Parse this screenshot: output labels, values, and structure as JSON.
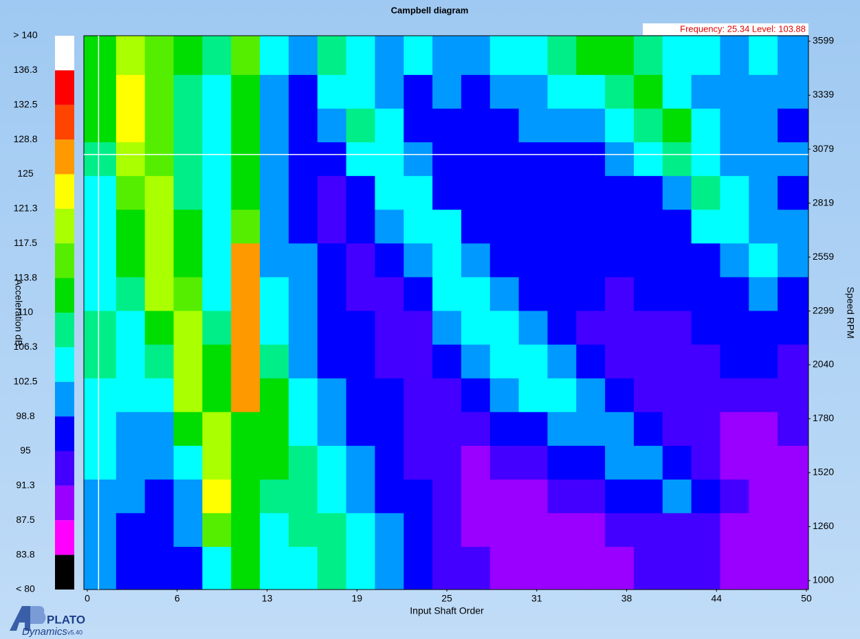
{
  "chart_data": {
    "type": "heatmap",
    "title": "Campbell diagram",
    "x_label": "Input Shaft Order",
    "y_label": "Speed RPM",
    "colorbar_label": "Acceleration dB",
    "cursor_readout": "Frequency: 25.34  Level: 103.88",
    "cursor_order": 0.4,
    "cursor_rpm": 3053,
    "xlim": [
      0,
      50
    ],
    "xticks": [
      0,
      {
        "value": 6.25,
        "label": "6"
      },
      {
        "value": 12.5,
        "label": "13"
      },
      {
        "value": 18.75,
        "label": "19"
      },
      25,
      {
        "value": 31.25,
        "label": "31"
      },
      {
        "value": 37.5,
        "label": "38"
      },
      {
        "value": 43.75,
        "label": "44"
      },
      50
    ],
    "ylim": [
      1000,
      3599
    ],
    "yticks": [
      1000,
      1260,
      1520,
      1780,
      2040,
      2299,
      2559,
      2819,
      3079,
      3339,
      3599
    ],
    "x": [
      1,
      3,
      5,
      7,
      9,
      11,
      13,
      15,
      17,
      19,
      21,
      23,
      25,
      27,
      29,
      31,
      33,
      35,
      37,
      39,
      41,
      43,
      45,
      47,
      49
    ],
    "y": [
      3518,
      3355,
      3193,
      3031,
      2868,
      2706,
      2543,
      2381,
      2218,
      2056,
      1893,
      1731,
      1568,
      1406,
      1244,
      1081
    ],
    "values": [
      [
        110,
        121,
        116,
        110,
        108,
        115,
        104,
        100,
        108,
        104,
        100,
        104,
        102,
        100,
        104,
        106,
        108,
        110,
        112,
        108,
        104,
        104,
        102,
        104,
        102
      ],
      [
        110,
        124,
        114,
        108,
        106,
        113,
        100,
        97,
        104,
        106,
        100,
        97,
        100,
        98,
        100,
        102,
        104,
        106,
        108,
        110,
        106,
        102,
        100,
        102,
        100
      ],
      [
        110,
        123,
        114,
        108,
        106,
        112,
        100,
        96,
        100,
        108,
        104,
        97,
        96,
        97,
        97,
        100,
        100,
        102,
        104,
        108,
        110,
        104,
        100,
        100,
        98
      ],
      [
        108,
        120,
        116,
        108,
        104,
        112,
        102,
        96,
        96,
        104,
        106,
        100,
        96,
        96,
        96,
        97,
        97,
        98,
        100,
        104,
        108,
        106,
        102,
        100,
        100
      ],
      [
        106,
        116,
        118,
        108,
        104,
        112,
        100,
        97,
        94,
        97,
        106,
        106,
        98,
        96,
        96,
        96,
        96,
        96,
        97,
        98,
        102,
        108,
        104,
        100,
        98
      ],
      [
        106,
        112,
        120,
        110,
        104,
        114,
        100,
        98,
        94,
        95,
        100,
        106,
        104,
        97,
        96,
        96,
        95,
        96,
        96,
        97,
        98,
        104,
        106,
        102,
        100
      ],
      [
        106,
        110,
        121,
        112,
        104,
        126,
        102,
        100,
        95,
        94,
        96,
        102,
        106,
        102,
        97,
        96,
        96,
        95,
        96,
        96,
        96,
        98,
        102,
        104,
        100
      ],
      [
        106,
        108,
        118,
        116,
        106,
        126,
        104,
        100,
        97,
        93,
        94,
        97,
        104,
        106,
        100,
        97,
        95,
        95,
        94,
        95,
        96,
        96,
        98,
        100,
        97
      ],
      [
        108,
        106,
        112,
        120,
        108,
        126,
        106,
        100,
        98,
        95,
        93,
        94,
        100,
        104,
        104,
        100,
        96,
        94,
        93,
        93,
        94,
        95,
        96,
        96,
        96
      ],
      [
        108,
        104,
        108,
        121,
        110,
        126,
        108,
        102,
        98,
        96,
        94,
        93,
        95,
        100,
        104,
        104,
        100,
        96,
        93,
        92,
        93,
        94,
        95,
        95,
        94
      ],
      [
        106,
        104,
        104,
        118,
        112,
        126,
        110,
        104,
        100,
        97,
        95,
        93,
        93,
        96,
        100,
        104,
        103,
        100,
        97,
        93,
        92,
        92,
        93,
        93,
        92
      ],
      [
        104,
        102,
        100,
        112,
        118,
        112,
        110,
        106,
        102,
        98,
        96,
        93,
        92,
        93,
        96,
        98,
        102,
        102,
        100,
        97,
        93,
        92,
        91,
        91,
        92
      ],
      [
        104,
        100,
        100,
        106,
        120,
        110,
        110,
        108,
        104,
        100,
        97,
        94,
        92,
        91,
        92,
        93,
        96,
        98,
        100,
        100,
        97,
        93,
        91,
        90,
        90
      ],
      [
        102,
        100,
        98,
        102,
        122,
        110,
        108,
        108,
        106,
        102,
        98,
        95,
        92,
        91,
        90,
        91,
        92,
        93,
        96,
        98,
        99,
        96,
        92,
        90,
        91
      ],
      [
        102,
        98,
        97,
        100,
        114,
        112,
        106,
        108,
        108,
        104,
        100,
        96,
        93,
        91,
        90,
        90,
        90,
        91,
        92,
        93,
        94,
        93,
        91,
        89,
        90
      ],
      [
        102,
        97,
        96,
        98,
        106,
        112,
        104,
        106,
        108,
        106,
        102,
        97,
        94,
        92,
        91,
        90,
        90,
        90,
        91,
        92,
        92,
        92,
        91,
        89,
        90
      ]
    ],
    "colorbar": {
      "levels": [
        {
          "value": 140,
          "label": "> 140"
        },
        136.3,
        132.5,
        128.8,
        125,
        121.3,
        117.5,
        113.8,
        110,
        106.3,
        102.5,
        98.8,
        95,
        91.3,
        87.5,
        83.8,
        {
          "value": 80,
          "label": "< 80"
        }
      ],
      "colors": [
        "#ffffff",
        "#ff0000",
        "#ff4400",
        "#ff9900",
        "#ffff00",
        "#aaff00",
        "#55ee00",
        "#00dd00",
        "#00ee88",
        "#00ffff",
        "#0099ff",
        "#0000ff",
        "#4400ff",
        "#9900ff",
        "#ff00ff",
        "#000000"
      ]
    }
  },
  "branding": {
    "name": "PLATO",
    "subtitle": "Dynamics",
    "version": "v5.40"
  }
}
